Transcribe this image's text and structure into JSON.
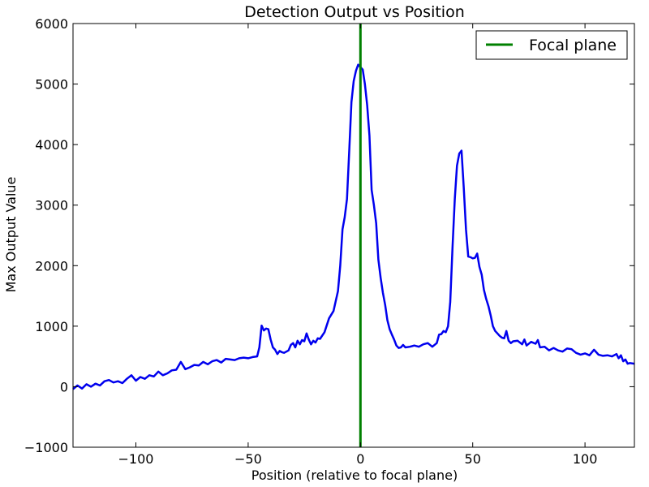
{
  "chart_data": {
    "type": "line",
    "title": "Detection Output vs Position",
    "xlabel": "Position (relative to focal plane)",
    "ylabel": "Max Output Value",
    "xlim": [
      -128,
      122
    ],
    "ylim": [
      -1000,
      6000
    ],
    "xticks": [
      -100,
      -50,
      0,
      50,
      100
    ],
    "xtick_labels": [
      "−100",
      "−50",
      "0",
      "50",
      "100"
    ],
    "yticks": [
      -1000,
      0,
      1000,
      2000,
      3000,
      4000,
      5000,
      6000
    ],
    "ytick_labels": [
      "−1000",
      "0",
      "1000",
      "2000",
      "3000",
      "4000",
      "5000",
      "6000"
    ],
    "grid": false,
    "legend_position": "top-right",
    "series": [
      {
        "name": "Max Output",
        "color": "#0000ee",
        "points": [
          [
            -128,
            -40
          ],
          [
            -126,
            20
          ],
          [
            -124,
            -30
          ],
          [
            -122,
            40
          ],
          [
            -120,
            0
          ],
          [
            -118,
            50
          ],
          [
            -116,
            20
          ],
          [
            -114,
            90
          ],
          [
            -112,
            110
          ],
          [
            -110,
            70
          ],
          [
            -108,
            90
          ],
          [
            -106,
            60
          ],
          [
            -104,
            130
          ],
          [
            -102,
            190
          ],
          [
            -100,
            100
          ],
          [
            -98,
            160
          ],
          [
            -96,
            130
          ],
          [
            -94,
            190
          ],
          [
            -92,
            170
          ],
          [
            -90,
            250
          ],
          [
            -88,
            190
          ],
          [
            -86,
            220
          ],
          [
            -84,
            270
          ],
          [
            -82,
            280
          ],
          [
            -80,
            410
          ],
          [
            -78,
            290
          ],
          [
            -76,
            320
          ],
          [
            -74,
            360
          ],
          [
            -72,
            350
          ],
          [
            -70,
            410
          ],
          [
            -68,
            370
          ],
          [
            -66,
            420
          ],
          [
            -64,
            440
          ],
          [
            -62,
            400
          ],
          [
            -60,
            460
          ],
          [
            -58,
            450
          ],
          [
            -56,
            440
          ],
          [
            -54,
            470
          ],
          [
            -52,
            480
          ],
          [
            -50,
            470
          ],
          [
            -48,
            490
          ],
          [
            -46,
            500
          ],
          [
            -45,
            650
          ],
          [
            -44,
            1010
          ],
          [
            -43,
            930
          ],
          [
            -42,
            960
          ],
          [
            -41,
            950
          ],
          [
            -40,
            780
          ],
          [
            -39,
            650
          ],
          [
            -38,
            610
          ],
          [
            -37,
            540
          ],
          [
            -36,
            590
          ],
          [
            -35,
            570
          ],
          [
            -34,
            560
          ],
          [
            -33,
            580
          ],
          [
            -32,
            600
          ],
          [
            -31,
            690
          ],
          [
            -30,
            720
          ],
          [
            -29,
            650
          ],
          [
            -28,
            760
          ],
          [
            -27,
            700
          ],
          [
            -26,
            770
          ],
          [
            -25,
            750
          ],
          [
            -24,
            880
          ],
          [
            -23,
            780
          ],
          [
            -22,
            700
          ],
          [
            -21,
            760
          ],
          [
            -20,
            730
          ],
          [
            -19,
            800
          ],
          [
            -18,
            790
          ],
          [
            -16,
            900
          ],
          [
            -14,
            1130
          ],
          [
            -12,
            1250
          ],
          [
            -10,
            1580
          ],
          [
            -9,
            2000
          ],
          [
            -8,
            2600
          ],
          [
            -7,
            2800
          ],
          [
            -6,
            3100
          ],
          [
            -5,
            3900
          ],
          [
            -4,
            4700
          ],
          [
            -3,
            5050
          ],
          [
            -2,
            5220
          ],
          [
            -1,
            5320
          ],
          [
            0,
            5280
          ],
          [
            1,
            5240
          ],
          [
            2,
            5000
          ],
          [
            3,
            4650
          ],
          [
            4,
            4150
          ],
          [
            5,
            3250
          ],
          [
            6,
            3000
          ],
          [
            7,
            2700
          ],
          [
            8,
            2100
          ],
          [
            9,
            1800
          ],
          [
            10,
            1550
          ],
          [
            11,
            1350
          ],
          [
            12,
            1100
          ],
          [
            13,
            950
          ],
          [
            14,
            860
          ],
          [
            15,
            780
          ],
          [
            16,
            680
          ],
          [
            17,
            640
          ],
          [
            18,
            650
          ],
          [
            19,
            690
          ],
          [
            20,
            650
          ],
          [
            22,
            660
          ],
          [
            24,
            680
          ],
          [
            26,
            660
          ],
          [
            28,
            700
          ],
          [
            30,
            720
          ],
          [
            32,
            660
          ],
          [
            34,
            720
          ],
          [
            35,
            860
          ],
          [
            36,
            870
          ],
          [
            37,
            920
          ],
          [
            38,
            900
          ],
          [
            39,
            1000
          ],
          [
            40,
            1400
          ],
          [
            41,
            2300
          ],
          [
            42,
            3100
          ],
          [
            43,
            3650
          ],
          [
            44,
            3850
          ],
          [
            45,
            3900
          ],
          [
            46,
            3300
          ],
          [
            47,
            2600
          ],
          [
            48,
            2150
          ],
          [
            49,
            2140
          ],
          [
            50,
            2120
          ],
          [
            51,
            2130
          ],
          [
            52,
            2200
          ],
          [
            53,
            1980
          ],
          [
            54,
            1850
          ],
          [
            55,
            1600
          ],
          [
            56,
            1450
          ],
          [
            57,
            1330
          ],
          [
            58,
            1180
          ],
          [
            59,
            1000
          ],
          [
            60,
            920
          ],
          [
            61,
            880
          ],
          [
            62,
            840
          ],
          [
            63,
            810
          ],
          [
            64,
            800
          ],
          [
            65,
            920
          ],
          [
            66,
            760
          ],
          [
            67,
            720
          ],
          [
            68,
            750
          ],
          [
            70,
            760
          ],
          [
            72,
            700
          ],
          [
            73,
            780
          ],
          [
            74,
            680
          ],
          [
            76,
            740
          ],
          [
            78,
            710
          ],
          [
            79,
            770
          ],
          [
            80,
            650
          ],
          [
            82,
            660
          ],
          [
            84,
            600
          ],
          [
            86,
            640
          ],
          [
            88,
            600
          ],
          [
            90,
            580
          ],
          [
            92,
            630
          ],
          [
            94,
            620
          ],
          [
            96,
            560
          ],
          [
            98,
            530
          ],
          [
            100,
            550
          ],
          [
            102,
            520
          ],
          [
            104,
            610
          ],
          [
            106,
            530
          ],
          [
            108,
            510
          ],
          [
            110,
            520
          ],
          [
            112,
            500
          ],
          [
            114,
            540
          ],
          [
            115,
            470
          ],
          [
            116,
            520
          ],
          [
            117,
            420
          ],
          [
            118,
            450
          ],
          [
            119,
            380
          ],
          [
            120,
            390
          ],
          [
            122,
            380
          ]
        ]
      },
      {
        "name": "Focal plane",
        "color": "#008000",
        "x": 0
      }
    ],
    "legend": [
      {
        "label": "Focal plane",
        "color": "#008000"
      }
    ]
  }
}
